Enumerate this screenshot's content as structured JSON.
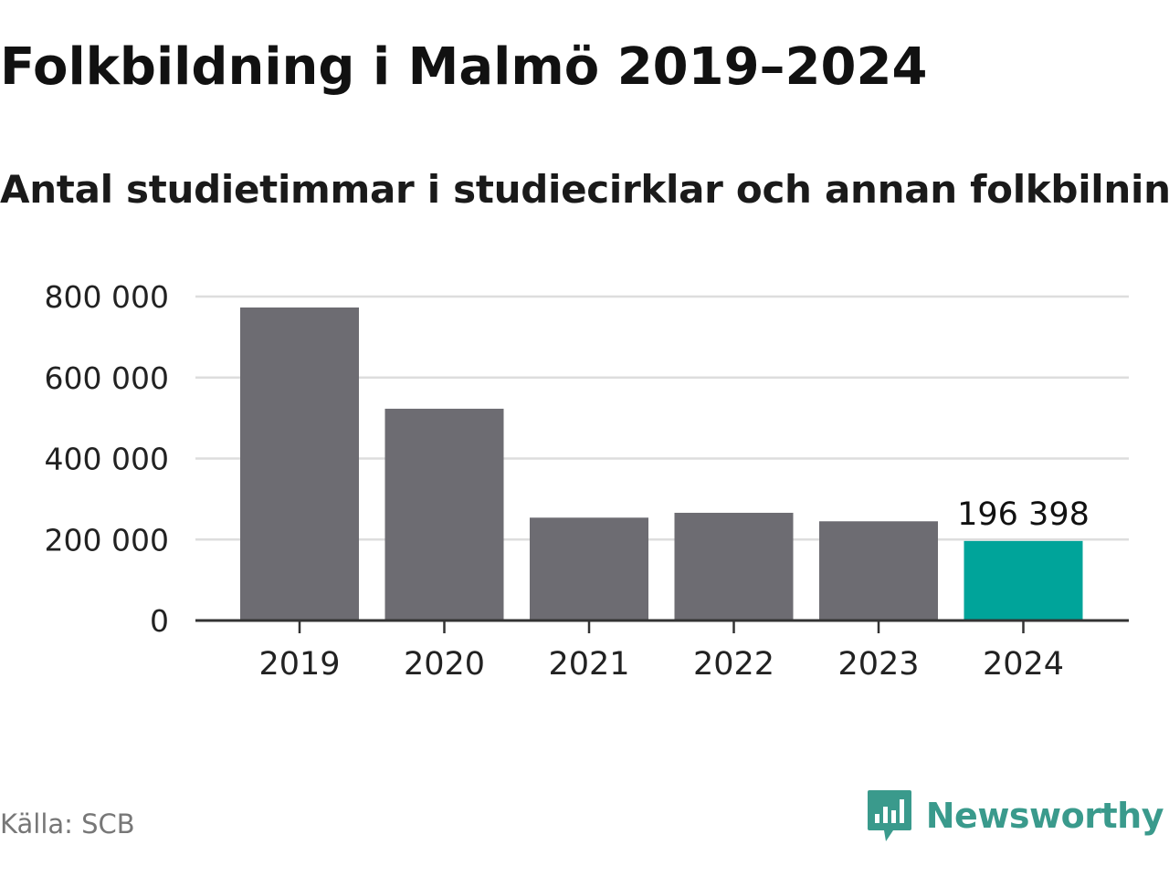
{
  "header": {
    "title": "Folkbildning i Malmö 2019–2024",
    "subtitle": "Antal studietimmar i studiecirklar och annan folkbilning"
  },
  "footer": {
    "source": "Källa: SCB",
    "brand": "Newsworthy",
    "brand_icon": "newsworthy-logo-icon"
  },
  "colors": {
    "bar": "#6d6c72",
    "highlight": "#00a49a",
    "grid": "#dddddd",
    "axis": "#333333",
    "brand": "#3a9a8c"
  },
  "chart_data": {
    "type": "bar",
    "categories": [
      "2019",
      "2020",
      "2021",
      "2022",
      "2023",
      "2024"
    ],
    "values": [
      773000,
      523000,
      254000,
      266000,
      245000,
      196398
    ],
    "highlight_index": 5,
    "data_labels": [
      {
        "index": 5,
        "text": "196 398"
      }
    ],
    "yticks": [
      0,
      200000,
      400000,
      600000,
      800000
    ],
    "ytick_labels": [
      "0",
      "200 000",
      "400 000",
      "600 000",
      "800 000"
    ],
    "ylim": [
      0,
      800000
    ],
    "grid": true,
    "legend": "none"
  }
}
